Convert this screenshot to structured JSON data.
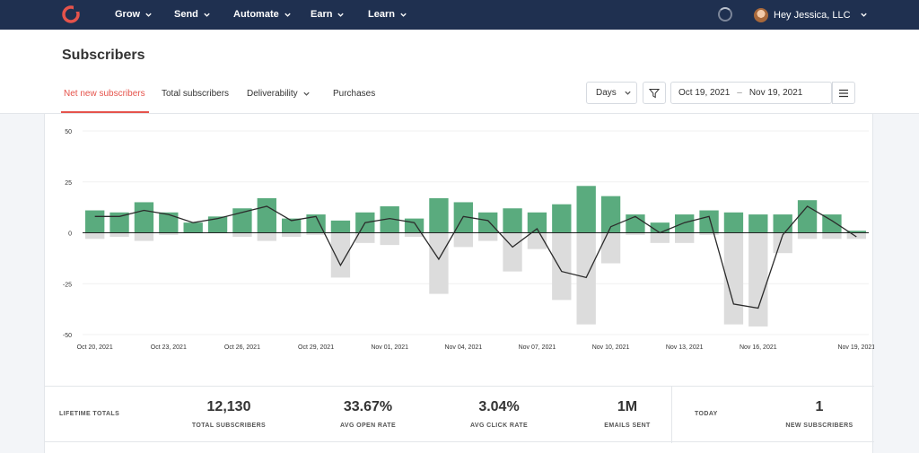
{
  "nav": {
    "items": [
      {
        "label": "Grow"
      },
      {
        "label": "Send"
      },
      {
        "label": "Automate"
      },
      {
        "label": "Earn"
      },
      {
        "label": "Learn"
      }
    ],
    "user_label": "Hey Jessica, LLC",
    "brand_color": "#e5534b",
    "bg_color": "#1f3050"
  },
  "header": {
    "title": "Subscribers",
    "tabs": [
      {
        "label": "Net new subscribers",
        "active": true
      },
      {
        "label": "Total subscribers"
      },
      {
        "label": "Deliverability"
      },
      {
        "label": "Purchases"
      }
    ],
    "interval": "Days",
    "date_from": "Oct 19, 2021",
    "date_sep": "–",
    "date_to": "Nov 19, 2021"
  },
  "chart_data": {
    "type": "bar",
    "ylim": [
      -50,
      50
    ],
    "yticks": [
      50,
      25,
      0,
      -25,
      -50
    ],
    "xtick_labels": [
      "Oct 20, 2021",
      "Oct 23, 2021",
      "Oct 26, 2021",
      "Oct 29, 2021",
      "Nov 01, 2021",
      "Nov 04, 2021",
      "Nov 07, 2021",
      "Nov 10, 2021",
      "Nov 13, 2021",
      "Nov 16, 2021",
      "Nov 19, 2021"
    ],
    "xtick_index": [
      0,
      3,
      6,
      9,
      12,
      15,
      18,
      21,
      24,
      27,
      31
    ],
    "colors": {
      "positive": "#5aab7e",
      "negative": "#dcdcdc",
      "line": "#2b2b2b"
    },
    "series": [
      {
        "values": [
          11,
          10,
          15,
          10,
          5,
          8,
          12,
          17,
          7,
          9,
          6,
          10,
          13,
          7,
          17,
          15,
          10,
          12,
          10,
          14,
          23,
          18,
          9,
          5,
          9,
          11,
          10,
          9,
          9,
          16,
          9,
          1
        ]
      },
      {
        "values": [
          -3,
          -2,
          -4,
          -1,
          0,
          0,
          -2,
          -4,
          -2,
          -1,
          -22,
          -5,
          -6,
          -2,
          -30,
          -7,
          -4,
          -19,
          -8,
          -33,
          -45,
          -15,
          -1,
          -5,
          -5,
          -1,
          -45,
          -46,
          -10,
          -3,
          -3,
          -3
        ]
      },
      {
        "values": [
          8,
          8,
          11,
          9,
          5,
          7,
          10,
          13,
          6,
          8,
          -16,
          5,
          7,
          5,
          -13,
          8,
          6,
          -7,
          2,
          -19,
          -22,
          3,
          8,
          0,
          5,
          8,
          -35,
          -37,
          -1,
          13,
          6,
          -2
        ]
      }
    ]
  },
  "totals": {
    "lifetime_label": "LIFETIME TOTALS",
    "total_subscribers": "12,130",
    "total_subscribers_label": "TOTAL SUBSCRIBERS",
    "open_rate": "33.67%",
    "open_rate_label": "AVG OPEN RATE",
    "click_rate": "3.04%",
    "click_rate_label": "AVG CLICK RATE",
    "emails_sent": "1M",
    "emails_sent_label": "EMAILS SENT",
    "today_label": "TODAY",
    "new_subscribers": "1",
    "new_subscribers_label": "NEW SUBSCRIBERS"
  }
}
